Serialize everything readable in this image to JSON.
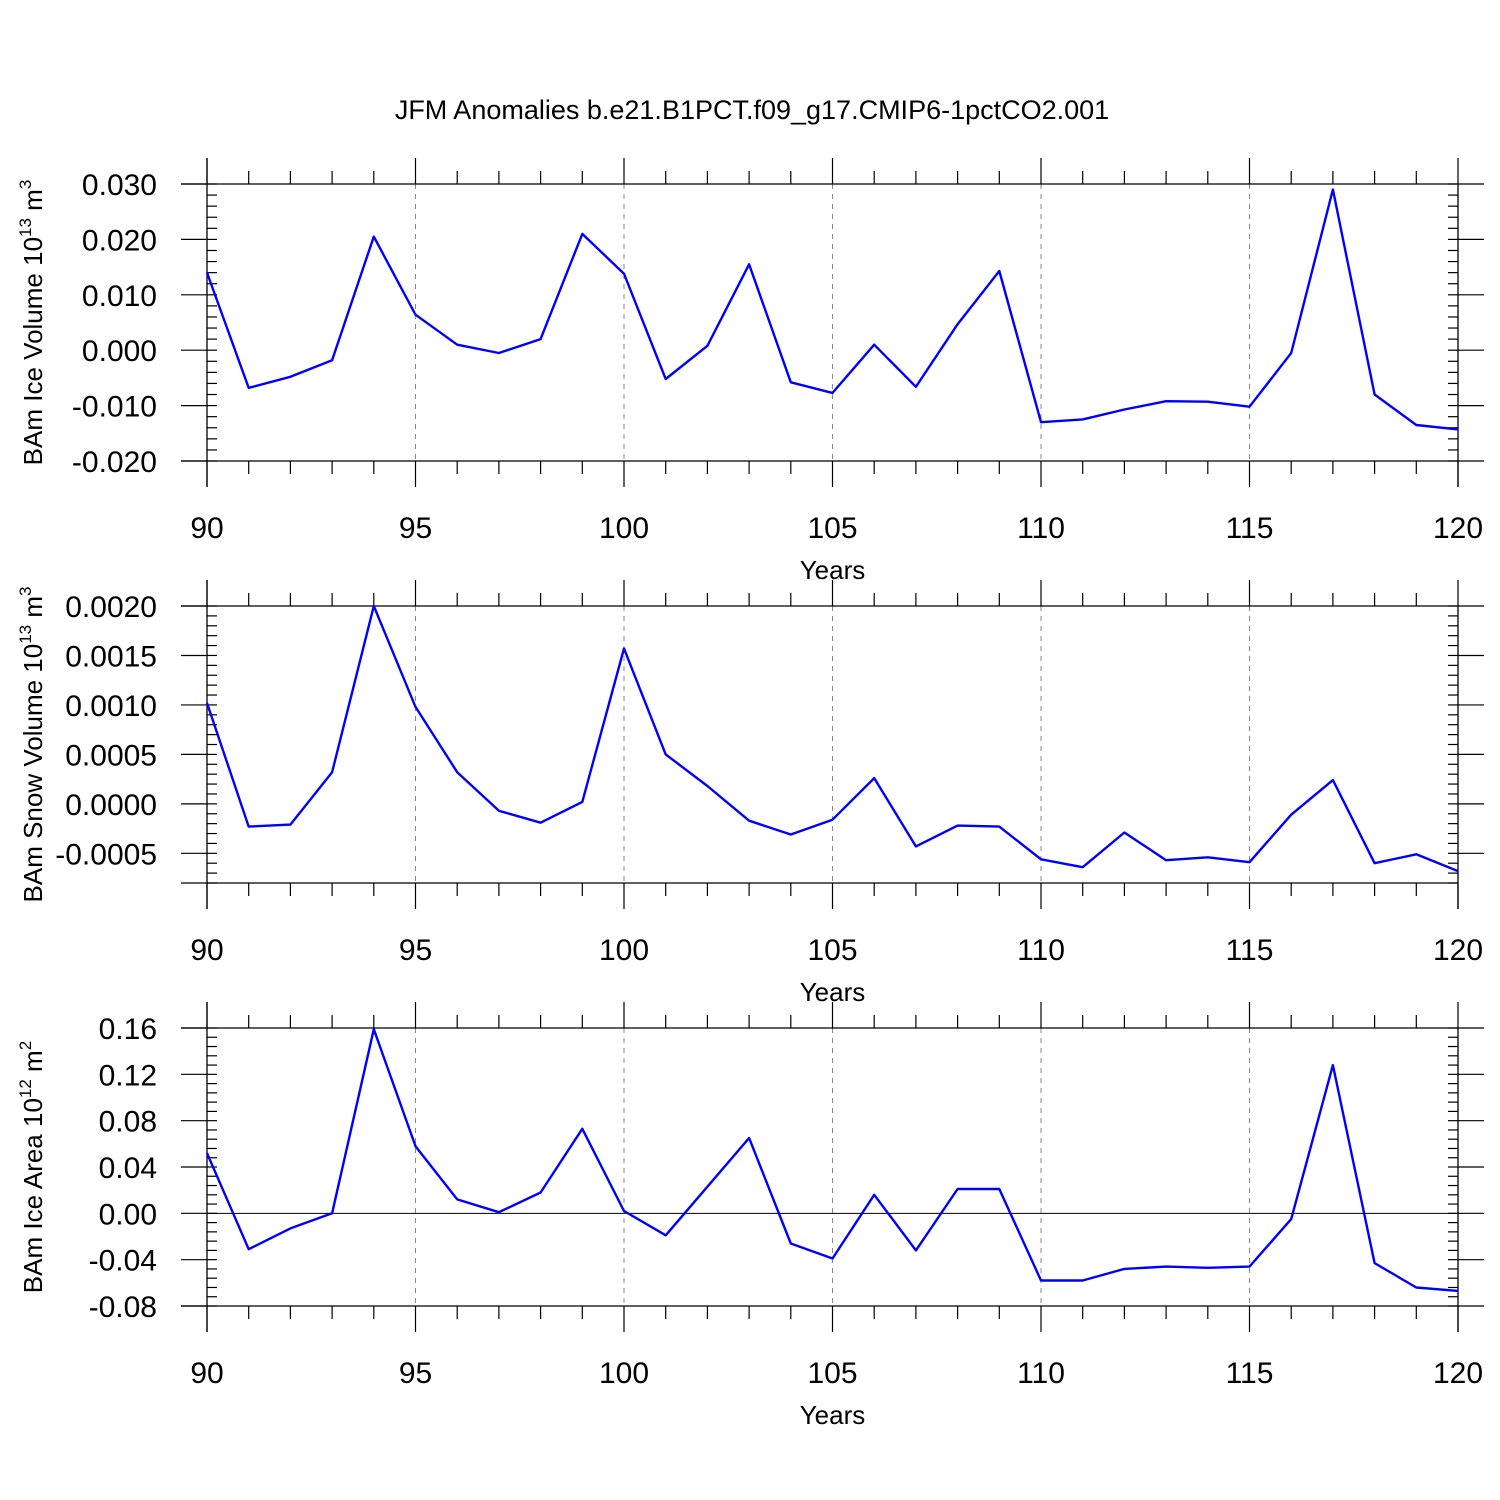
{
  "title": "JFM Anomalies b.e21.B1PCT.f09_g17.CMIP6-1pctCO2.001",
  "colors": {
    "series": "#0000ff",
    "frame": "#000000",
    "grid": "#888888"
  },
  "chart_data": [
    {
      "type": "line",
      "ylabel": {
        "text": "BAm Ice Volume 10",
        "exp": "13",
        "unit": " m",
        "unit_exp": "3"
      },
      "xlabel": "Years",
      "xlim": [
        90,
        120
      ],
      "ylim": [
        -0.02,
        0.03
      ],
      "x_ticks": [
        90,
        95,
        100,
        105,
        110,
        115,
        120
      ],
      "y_ticks": [
        -0.02,
        -0.01,
        0.0,
        0.01,
        0.02,
        0.03
      ],
      "y_tick_labels": [
        "-0.020",
        "-0.010",
        "0.000",
        "0.010",
        "0.020",
        "0.030"
      ],
      "y_minor_step": 0.002,
      "zero_line": false,
      "x": [
        90,
        91,
        92,
        93,
        94,
        95,
        96,
        97,
        98,
        99,
        100,
        101,
        102,
        103,
        104,
        105,
        106,
        107,
        108,
        109,
        110,
        111,
        112,
        113,
        114,
        115,
        116,
        117,
        118,
        119,
        120
      ],
      "series": [
        {
          "values": [
            0.014,
            -0.0068,
            -0.0048,
            -0.0018,
            0.0205,
            0.0064,
            0.001,
            -0.0005,
            0.002,
            0.021,
            0.0138,
            -0.0052,
            0.0008,
            0.0155,
            -0.0058,
            -0.0077,
            0.001,
            -0.0066,
            0.0047,
            0.0143,
            -0.013,
            -0.0125,
            -0.0107,
            -0.0092,
            -0.0093,
            -0.0102,
            -0.0005,
            0.029,
            -0.008,
            -0.0135,
            -0.0143
          ]
        }
      ],
      "grid": "dashed vertical lines at major x ticks"
    },
    {
      "type": "line",
      "ylabel": {
        "text": "BAm Snow Volume 10",
        "exp": "13",
        "unit": " m",
        "unit_exp": "3"
      },
      "xlabel": "Years",
      "xlim": [
        90,
        120
      ],
      "ylim": [
        -0.0008,
        0.002
      ],
      "x_ticks": [
        90,
        95,
        100,
        105,
        110,
        115,
        120
      ],
      "y_ticks": [
        -0.0005,
        0.0,
        0.0005,
        0.001,
        0.0015,
        0.002
      ],
      "y_tick_labels": [
        "-0.0005",
        "0.0000",
        "0.0005",
        "0.0010",
        "0.0015",
        "0.0020"
      ],
      "y_minor_step": 0.0001,
      "zero_line": false,
      "x": [
        90,
        91,
        92,
        93,
        94,
        95,
        96,
        97,
        98,
        99,
        100,
        101,
        102,
        103,
        104,
        105,
        106,
        107,
        108,
        109,
        110,
        111,
        112,
        113,
        114,
        115,
        116,
        117,
        118,
        119,
        120
      ],
      "series": [
        {
          "values": [
            0.00102,
            -0.00023,
            -0.00021,
            0.00032,
            0.002,
            0.00098,
            0.00032,
            -7e-05,
            -0.00019,
            2e-05,
            0.00157,
            0.0005,
            0.00018,
            -0.00017,
            -0.00031,
            -0.00016,
            0.00026,
            -0.00043,
            -0.00022,
            -0.00023,
            -0.00056,
            -0.00064,
            -0.00029,
            -0.00057,
            -0.00054,
            -0.00059,
            -0.00011,
            0.00024,
            -0.0006,
            -0.00051,
            -0.00068
          ]
        }
      ],
      "grid": "dashed vertical lines at major x ticks"
    },
    {
      "type": "line",
      "ylabel": {
        "text": "BAm Ice Area 10",
        "exp": "12",
        "unit": " m",
        "unit_exp": "2"
      },
      "xlabel": "Years",
      "xlim": [
        90,
        120
      ],
      "ylim": [
        -0.08,
        0.16
      ],
      "x_ticks": [
        90,
        95,
        100,
        105,
        110,
        115,
        120
      ],
      "y_ticks": [
        -0.08,
        -0.04,
        0.0,
        0.04,
        0.08,
        0.12,
        0.16
      ],
      "y_tick_labels": [
        "-0.08",
        "-0.04",
        "0.00",
        "0.04",
        "0.08",
        "0.12",
        "0.16"
      ],
      "y_minor_step": 0.008,
      "zero_line": true,
      "x": [
        90,
        91,
        92,
        93,
        94,
        95,
        96,
        97,
        98,
        99,
        100,
        101,
        102,
        103,
        104,
        105,
        106,
        107,
        108,
        109,
        110,
        111,
        112,
        113,
        114,
        115,
        116,
        117,
        118,
        119,
        120
      ],
      "series": [
        {
          "values": [
            0.052,
            -0.031,
            -0.013,
            0.0,
            0.159,
            0.058,
            0.012,
            0.001,
            0.018,
            0.073,
            0.002,
            -0.019,
            0.023,
            0.065,
            -0.026,
            -0.039,
            0.016,
            -0.032,
            0.021,
            0.021,
            -0.058,
            -0.058,
            -0.048,
            -0.046,
            -0.047,
            -0.046,
            -0.005,
            0.128,
            -0.043,
            -0.064,
            -0.067
          ]
        }
      ],
      "grid": "dashed vertical lines at major x ticks"
    }
  ]
}
